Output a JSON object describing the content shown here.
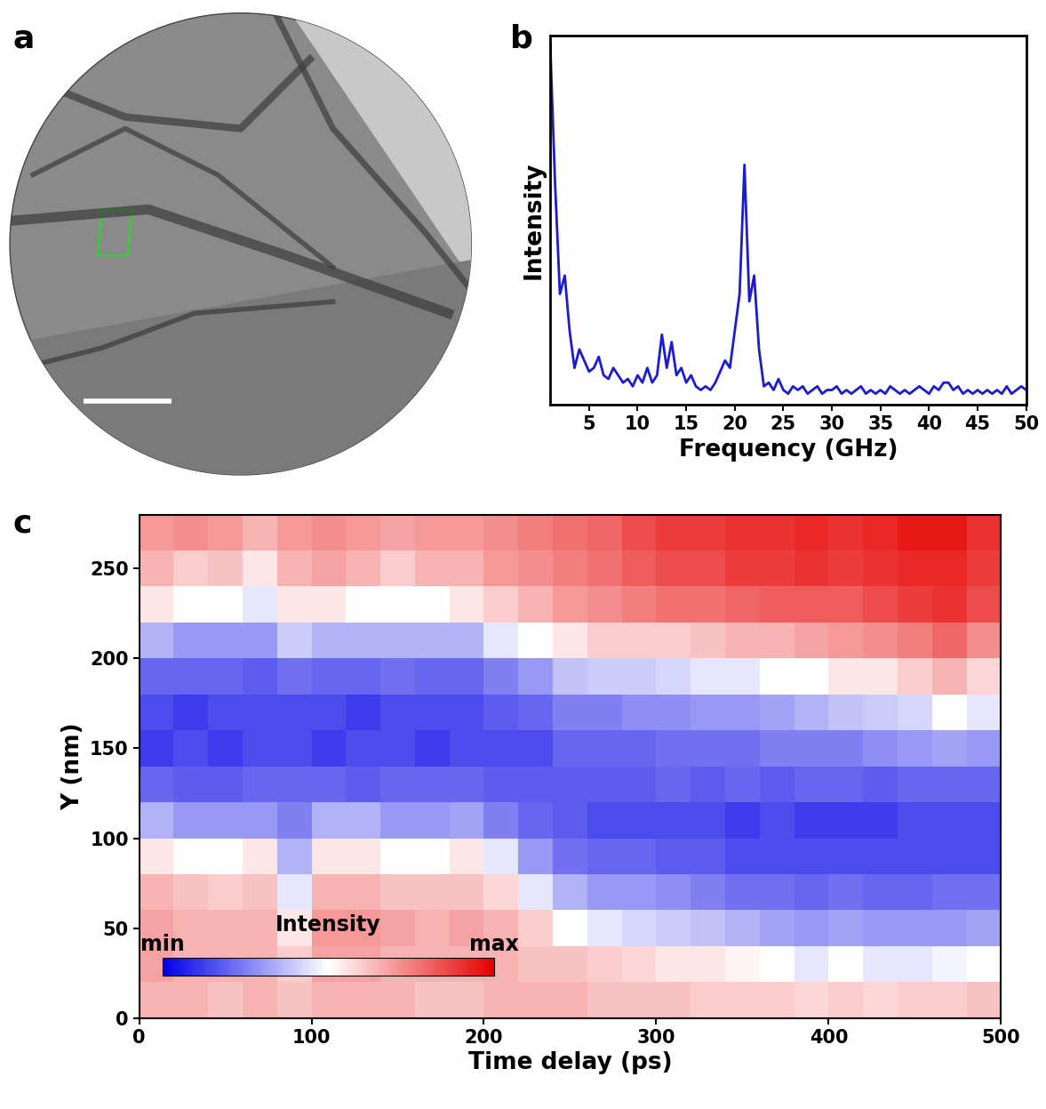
{
  "chart_data": [
    {
      "type": "image",
      "panel_label": "a"
    },
    {
      "type": "line",
      "panel_label": "b",
      "x_label": "Frequency (GHz)",
      "y_label": "Intensity",
      "xlim": [
        1,
        50
      ],
      "ylim": [
        0,
        1
      ],
      "xticks": [
        5,
        10,
        15,
        20,
        25,
        30,
        35,
        40,
        45,
        50
      ],
      "tick_labels": "x",
      "color": "#1a1ad8",
      "x": [
        1.0,
        1.5,
        2.0,
        2.5,
        3.0,
        3.5,
        4.0,
        4.5,
        5.0,
        5.5,
        6.0,
        6.5,
        7.0,
        7.5,
        8.0,
        8.5,
        9.0,
        9.5,
        10.0,
        10.5,
        11.0,
        11.5,
        12.0,
        12.5,
        13.0,
        13.5,
        14.0,
        14.5,
        15.0,
        15.5,
        16.0,
        16.5,
        17.0,
        17.5,
        18.0,
        18.5,
        19.0,
        19.5,
        20.0,
        20.5,
        21.0,
        21.5,
        22.0,
        22.5,
        23.0,
        23.5,
        24.0,
        24.5,
        25.0,
        25.5,
        26.0,
        26.5,
        27.0,
        27.5,
        28.0,
        28.5,
        29.0,
        29.5,
        30.0,
        30.5,
        31.0,
        31.5,
        32.0,
        32.5,
        33.0,
        33.5,
        34.0,
        34.5,
        35.0,
        35.5,
        36.0,
        36.5,
        37.0,
        37.5,
        38.0,
        38.5,
        39.0,
        39.5,
        40.0,
        40.5,
        41.0,
        41.5,
        42.0,
        42.5,
        43.0,
        43.5,
        44.0,
        44.5,
        45.0,
        45.5,
        46.0,
        46.5,
        47.0,
        47.5,
        48.0,
        48.5,
        49.0,
        49.5,
        50.0
      ],
      "values": [
        0.98,
        0.6,
        0.3,
        0.35,
        0.2,
        0.1,
        0.15,
        0.12,
        0.09,
        0.1,
        0.13,
        0.08,
        0.07,
        0.1,
        0.08,
        0.06,
        0.07,
        0.05,
        0.08,
        0.06,
        0.1,
        0.06,
        0.08,
        0.19,
        0.1,
        0.17,
        0.08,
        0.1,
        0.06,
        0.08,
        0.05,
        0.04,
        0.05,
        0.04,
        0.06,
        0.09,
        0.12,
        0.1,
        0.2,
        0.3,
        0.65,
        0.28,
        0.35,
        0.15,
        0.05,
        0.06,
        0.04,
        0.07,
        0.04,
        0.03,
        0.05,
        0.04,
        0.05,
        0.03,
        0.04,
        0.05,
        0.03,
        0.04,
        0.04,
        0.05,
        0.03,
        0.04,
        0.03,
        0.04,
        0.05,
        0.03,
        0.04,
        0.03,
        0.04,
        0.03,
        0.05,
        0.04,
        0.03,
        0.04,
        0.03,
        0.04,
        0.05,
        0.04,
        0.03,
        0.05,
        0.04,
        0.06,
        0.06,
        0.04,
        0.05,
        0.03,
        0.04,
        0.03,
        0.04,
        0.03,
        0.04,
        0.03,
        0.04,
        0.03,
        0.05,
        0.03,
        0.04,
        0.05,
        0.04
      ]
    },
    {
      "type": "heatmap",
      "panel_label": "c",
      "x_label": "Time delay (ps)",
      "y_label": "Y (nm)",
      "xlim": [
        0,
        500
      ],
      "ylim": [
        0,
        280
      ],
      "xticks": [
        0,
        100,
        200,
        300,
        400,
        500
      ],
      "yticks": [
        0,
        50,
        100,
        150,
        200,
        250
      ],
      "x_edges": [
        0,
        20,
        40,
        60,
        80,
        100,
        120,
        140,
        160,
        180,
        200,
        220,
        240,
        260,
        280,
        300,
        320,
        340,
        360,
        380,
        400,
        420,
        440,
        460,
        480,
        500
      ],
      "y_edges": [
        0,
        20,
        40,
        60,
        80,
        100,
        120,
        140,
        160,
        180,
        200,
        220,
        240,
        260,
        280
      ],
      "cells": [
        [
          0.65,
          0.65,
          0.62,
          0.65,
          0.62,
          0.65,
          0.65,
          0.65,
          0.62,
          0.62,
          0.65,
          0.65,
          0.65,
          0.62,
          0.62,
          0.62,
          0.6,
          0.6,
          0.6,
          0.58,
          0.6,
          0.58,
          0.6,
          0.6,
          0.62
        ],
        [
          0.68,
          0.65,
          0.65,
          0.65,
          0.6,
          0.68,
          0.68,
          0.65,
          0.65,
          0.65,
          0.65,
          0.62,
          0.62,
          0.6,
          0.58,
          0.55,
          0.55,
          0.52,
          0.5,
          0.45,
          0.5,
          0.45,
          0.45,
          0.48,
          0.5
        ],
        [
          0.68,
          0.65,
          0.65,
          0.65,
          0.55,
          0.7,
          0.7,
          0.68,
          0.65,
          0.68,
          0.65,
          0.6,
          0.5,
          0.45,
          0.42,
          0.4,
          0.38,
          0.35,
          0.32,
          0.3,
          0.32,
          0.3,
          0.3,
          0.3,
          0.32
        ],
        [
          0.65,
          0.62,
          0.6,
          0.62,
          0.45,
          0.65,
          0.65,
          0.62,
          0.62,
          0.62,
          0.58,
          0.45,
          0.35,
          0.3,
          0.3,
          0.28,
          0.25,
          0.22,
          0.22,
          0.2,
          0.22,
          0.2,
          0.2,
          0.22,
          0.22
        ],
        [
          0.55,
          0.5,
          0.5,
          0.55,
          0.35,
          0.55,
          0.55,
          0.5,
          0.5,
          0.55,
          0.45,
          0.3,
          0.22,
          0.2,
          0.2,
          0.18,
          0.18,
          0.15,
          0.15,
          0.15,
          0.15,
          0.15,
          0.15,
          0.15,
          0.15
        ],
        [
          0.35,
          0.3,
          0.3,
          0.3,
          0.25,
          0.35,
          0.35,
          0.3,
          0.3,
          0.32,
          0.25,
          0.2,
          0.18,
          0.15,
          0.15,
          0.15,
          0.15,
          0.12,
          0.15,
          0.12,
          0.12,
          0.12,
          0.15,
          0.15,
          0.15
        ],
        [
          0.2,
          0.18,
          0.18,
          0.2,
          0.2,
          0.2,
          0.18,
          0.2,
          0.2,
          0.2,
          0.18,
          0.18,
          0.18,
          0.18,
          0.18,
          0.2,
          0.18,
          0.2,
          0.18,
          0.2,
          0.2,
          0.18,
          0.2,
          0.2,
          0.2
        ],
        [
          0.12,
          0.15,
          0.12,
          0.15,
          0.15,
          0.12,
          0.15,
          0.15,
          0.12,
          0.15,
          0.15,
          0.15,
          0.2,
          0.2,
          0.2,
          0.22,
          0.22,
          0.22,
          0.25,
          0.25,
          0.25,
          0.28,
          0.3,
          0.32,
          0.3
        ],
        [
          0.15,
          0.12,
          0.15,
          0.15,
          0.15,
          0.15,
          0.12,
          0.15,
          0.15,
          0.15,
          0.18,
          0.2,
          0.25,
          0.25,
          0.28,
          0.28,
          0.3,
          0.3,
          0.32,
          0.35,
          0.38,
          0.4,
          0.42,
          0.5,
          0.45
        ],
        [
          0.2,
          0.2,
          0.2,
          0.18,
          0.22,
          0.2,
          0.2,
          0.22,
          0.2,
          0.2,
          0.25,
          0.3,
          0.38,
          0.4,
          0.4,
          0.42,
          0.45,
          0.45,
          0.5,
          0.5,
          0.55,
          0.55,
          0.6,
          0.65,
          0.58
        ],
        [
          0.35,
          0.3,
          0.3,
          0.3,
          0.4,
          0.35,
          0.35,
          0.35,
          0.35,
          0.35,
          0.45,
          0.5,
          0.55,
          0.6,
          0.6,
          0.6,
          0.62,
          0.65,
          0.65,
          0.68,
          0.7,
          0.72,
          0.75,
          0.8,
          0.72
        ],
        [
          0.55,
          0.5,
          0.5,
          0.45,
          0.55,
          0.55,
          0.5,
          0.5,
          0.5,
          0.55,
          0.6,
          0.65,
          0.7,
          0.72,
          0.75,
          0.78,
          0.78,
          0.8,
          0.82,
          0.82,
          0.82,
          0.85,
          0.88,
          0.9,
          0.85
        ],
        [
          0.65,
          0.6,
          0.62,
          0.55,
          0.65,
          0.68,
          0.65,
          0.6,
          0.65,
          0.65,
          0.7,
          0.72,
          0.75,
          0.78,
          0.82,
          0.85,
          0.85,
          0.88,
          0.88,
          0.9,
          0.88,
          0.9,
          0.92,
          0.92,
          0.88
        ],
        [
          0.7,
          0.72,
          0.7,
          0.65,
          0.7,
          0.72,
          0.7,
          0.68,
          0.7,
          0.7,
          0.72,
          0.75,
          0.78,
          0.8,
          0.85,
          0.88,
          0.88,
          0.9,
          0.9,
          0.92,
          0.9,
          0.92,
          0.95,
          0.95,
          0.9
        ]
      ],
      "colorbar": {
        "label": "Intensity",
        "range": [
          0,
          1
        ],
        "ticks": [
          {
            "value": 0,
            "label": "min"
          },
          {
            "value": 1,
            "label": "max"
          }
        ]
      }
    }
  ]
}
